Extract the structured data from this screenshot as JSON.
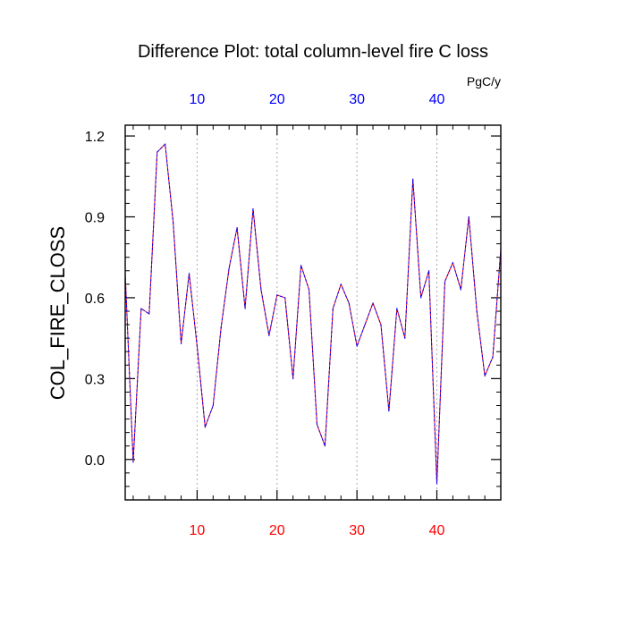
{
  "chart_data": {
    "type": "line",
    "title": "Difference Plot: total column-level fire C loss",
    "units": "PgC/y",
    "ylabel": "COL_FIRE_CLOSS",
    "xlabel": "",
    "xlim": [
      1,
      48
    ],
    "ylim": [
      -0.15,
      1.24
    ],
    "x_ticks": [
      10,
      20,
      30,
      40
    ],
    "y_ticks": [
      0.0,
      0.3,
      0.6,
      0.9,
      1.2
    ],
    "y_tick_labels": [
      "0.0",
      "0.3",
      "0.6",
      "0.9",
      "1.2"
    ],
    "grid_x": true,
    "x": [
      1,
      2,
      3,
      4,
      5,
      6,
      7,
      8,
      9,
      10,
      11,
      12,
      13,
      14,
      15,
      16,
      17,
      18,
      19,
      20,
      21,
      22,
      23,
      24,
      25,
      26,
      27,
      28,
      29,
      30,
      31,
      32,
      33,
      34,
      35,
      36,
      37,
      38,
      39,
      40,
      41,
      42,
      43,
      44,
      45,
      46,
      47,
      48
    ],
    "series": [
      {
        "name": "difference",
        "values": [
          0.69,
          -0.01,
          0.56,
          0.54,
          1.14,
          1.17,
          0.88,
          0.43,
          0.69,
          0.42,
          0.12,
          0.2,
          0.49,
          0.71,
          0.86,
          0.56,
          0.93,
          0.63,
          0.46,
          0.61,
          0.6,
          0.3,
          0.72,
          0.63,
          0.13,
          0.05,
          0.56,
          0.65,
          0.58,
          0.42,
          0.5,
          0.58,
          0.5,
          0.18,
          0.56,
          0.45,
          1.04,
          0.6,
          0.7,
          -0.09,
          0.66,
          0.73,
          0.63,
          0.9,
          0.55,
          0.31,
          0.38,
          0.78
        ],
        "color_primary": "#0000ff",
        "color_secondary": "#ff0000"
      }
    ],
    "colors": {
      "bottom_axis_labels": "#ff0000",
      "top_axis_labels": "#0000ff",
      "frame": "#000000",
      "grid": "#aaaaaa"
    }
  }
}
